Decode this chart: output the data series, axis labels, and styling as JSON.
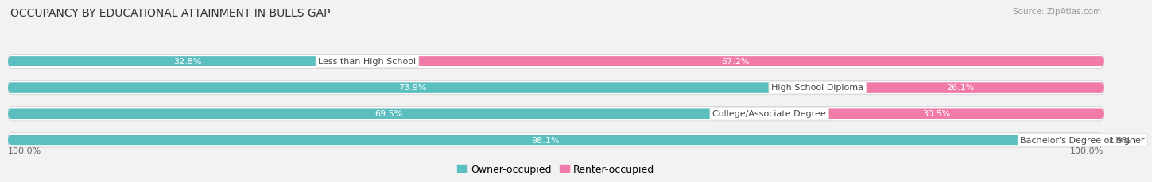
{
  "title": "OCCUPANCY BY EDUCATIONAL ATTAINMENT IN BULLS GAP",
  "source": "Source: ZipAtlas.com",
  "categories": [
    "Less than High School",
    "High School Diploma",
    "College/Associate Degree",
    "Bachelor's Degree or higher"
  ],
  "owner_values": [
    32.8,
    73.9,
    69.5,
    98.1
  ],
  "renter_values": [
    67.2,
    26.1,
    30.5,
    1.9
  ],
  "owner_color": "#5bbfbf",
  "renter_color": "#f07aa8",
  "background_color": "#f2f2f2",
  "bar_bg_color": "#e8e8e8",
  "row_bg_color": "#ffffff",
  "title_fontsize": 10,
  "source_fontsize": 7.5,
  "legend_fontsize": 9,
  "pct_fontsize": 8,
  "label_fontsize": 8,
  "axis_label_fontsize": 8
}
